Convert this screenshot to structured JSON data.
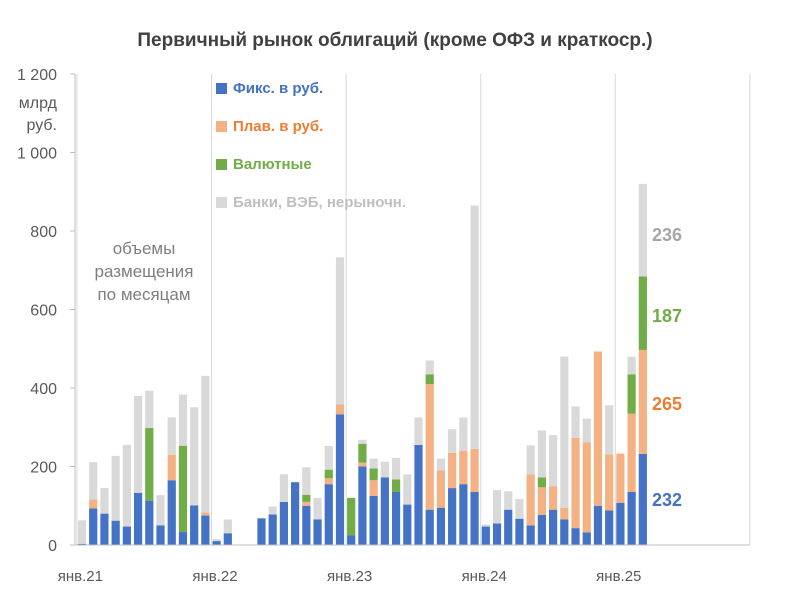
{
  "chart_data": {
    "type": "bar",
    "stacked": true,
    "title": "Первичный рынок облигаций (кроме ОФЗ и краткоср.)",
    "ylabel": "млрд руб.",
    "ylim": [
      0,
      1200
    ],
    "yticks": [
      0,
      200,
      400,
      600,
      800,
      1000,
      1200
    ],
    "ytick_labels": [
      "0",
      "200",
      "400",
      "600",
      "800",
      "1 000",
      "1 200"
    ],
    "x_tick_labels": [
      "янв.21",
      "янв.22",
      "янв.23",
      "янв.24",
      "янв.25"
    ],
    "x_tick_indices": [
      0,
      12,
      24,
      36,
      48
    ],
    "n_slots": 60,
    "annotation": "объемы размещения по месяцам",
    "annotation_lines": [
      "объемы",
      "размещения",
      "по месяцам"
    ],
    "grid": "vertical",
    "legend_position": "top-center",
    "colors": {
      "fixed": "#4472c4",
      "floating": "#f4b183",
      "currency": "#70ad47",
      "other": "#d9d9d9"
    },
    "series": [
      {
        "name": "Фикс. в руб.",
        "key": "fixed",
        "values": [
          3,
          93,
          80,
          62,
          47,
          133,
          113,
          50,
          165,
          33,
          101,
          75,
          10,
          30,
          0,
          0,
          68,
          78,
          110,
          160,
          100,
          65,
          155,
          333,
          25,
          200,
          125,
          172,
          135,
          103,
          255,
          90,
          95,
          145,
          155,
          135,
          47,
          55,
          90,
          67,
          50,
          77,
          90,
          65,
          43,
          32,
          100,
          88,
          107,
          135,
          232
        ]
      },
      {
        "name": "Плав. в руб.",
        "key": "floating",
        "values": [
          0,
          23,
          0,
          0,
          0,
          0,
          0,
          0,
          65,
          0,
          0,
          8,
          0,
          0,
          0,
          0,
          0,
          0,
          0,
          0,
          10,
          0,
          15,
          25,
          0,
          10,
          40,
          0,
          0,
          0,
          0,
          320,
          95,
          90,
          85,
          110,
          0,
          0,
          0,
          0,
          130,
          70,
          60,
          30,
          230,
          230,
          393,
          143,
          126,
          200,
          265
        ]
      },
      {
        "name": "Валютные",
        "key": "currency",
        "values": [
          0,
          0,
          0,
          0,
          0,
          0,
          185,
          0,
          0,
          220,
          0,
          0,
          0,
          0,
          0,
          0,
          0,
          0,
          0,
          0,
          18,
          0,
          22,
          0,
          95,
          48,
          30,
          0,
          32,
          0,
          0,
          25,
          0,
          0,
          0,
          0,
          0,
          0,
          0,
          0,
          0,
          25,
          0,
          0,
          0,
          0,
          0,
          0,
          0,
          100,
          187
        ]
      },
      {
        "name": "Банки, ВЭБ, нерыночн.",
        "key": "other",
        "values": [
          60,
          95,
          65,
          165,
          208,
          247,
          95,
          77,
          95,
          130,
          250,
          348,
          5,
          35,
          0,
          0,
          0,
          20,
          70,
          0,
          70,
          55,
          60,
          375,
          0,
          10,
          25,
          40,
          55,
          77,
          70,
          35,
          30,
          60,
          85,
          620,
          5,
          85,
          47,
          50,
          74,
          120,
          130,
          385,
          80,
          60,
          0,
          125,
          0,
          45,
          236
        ]
      }
    ],
    "end_labels": [
      {
        "series": "fixed",
        "value": "232"
      },
      {
        "series": "floating",
        "value": "265"
      },
      {
        "series": "currency",
        "value": "187"
      },
      {
        "series": "other",
        "value": "236"
      }
    ]
  }
}
